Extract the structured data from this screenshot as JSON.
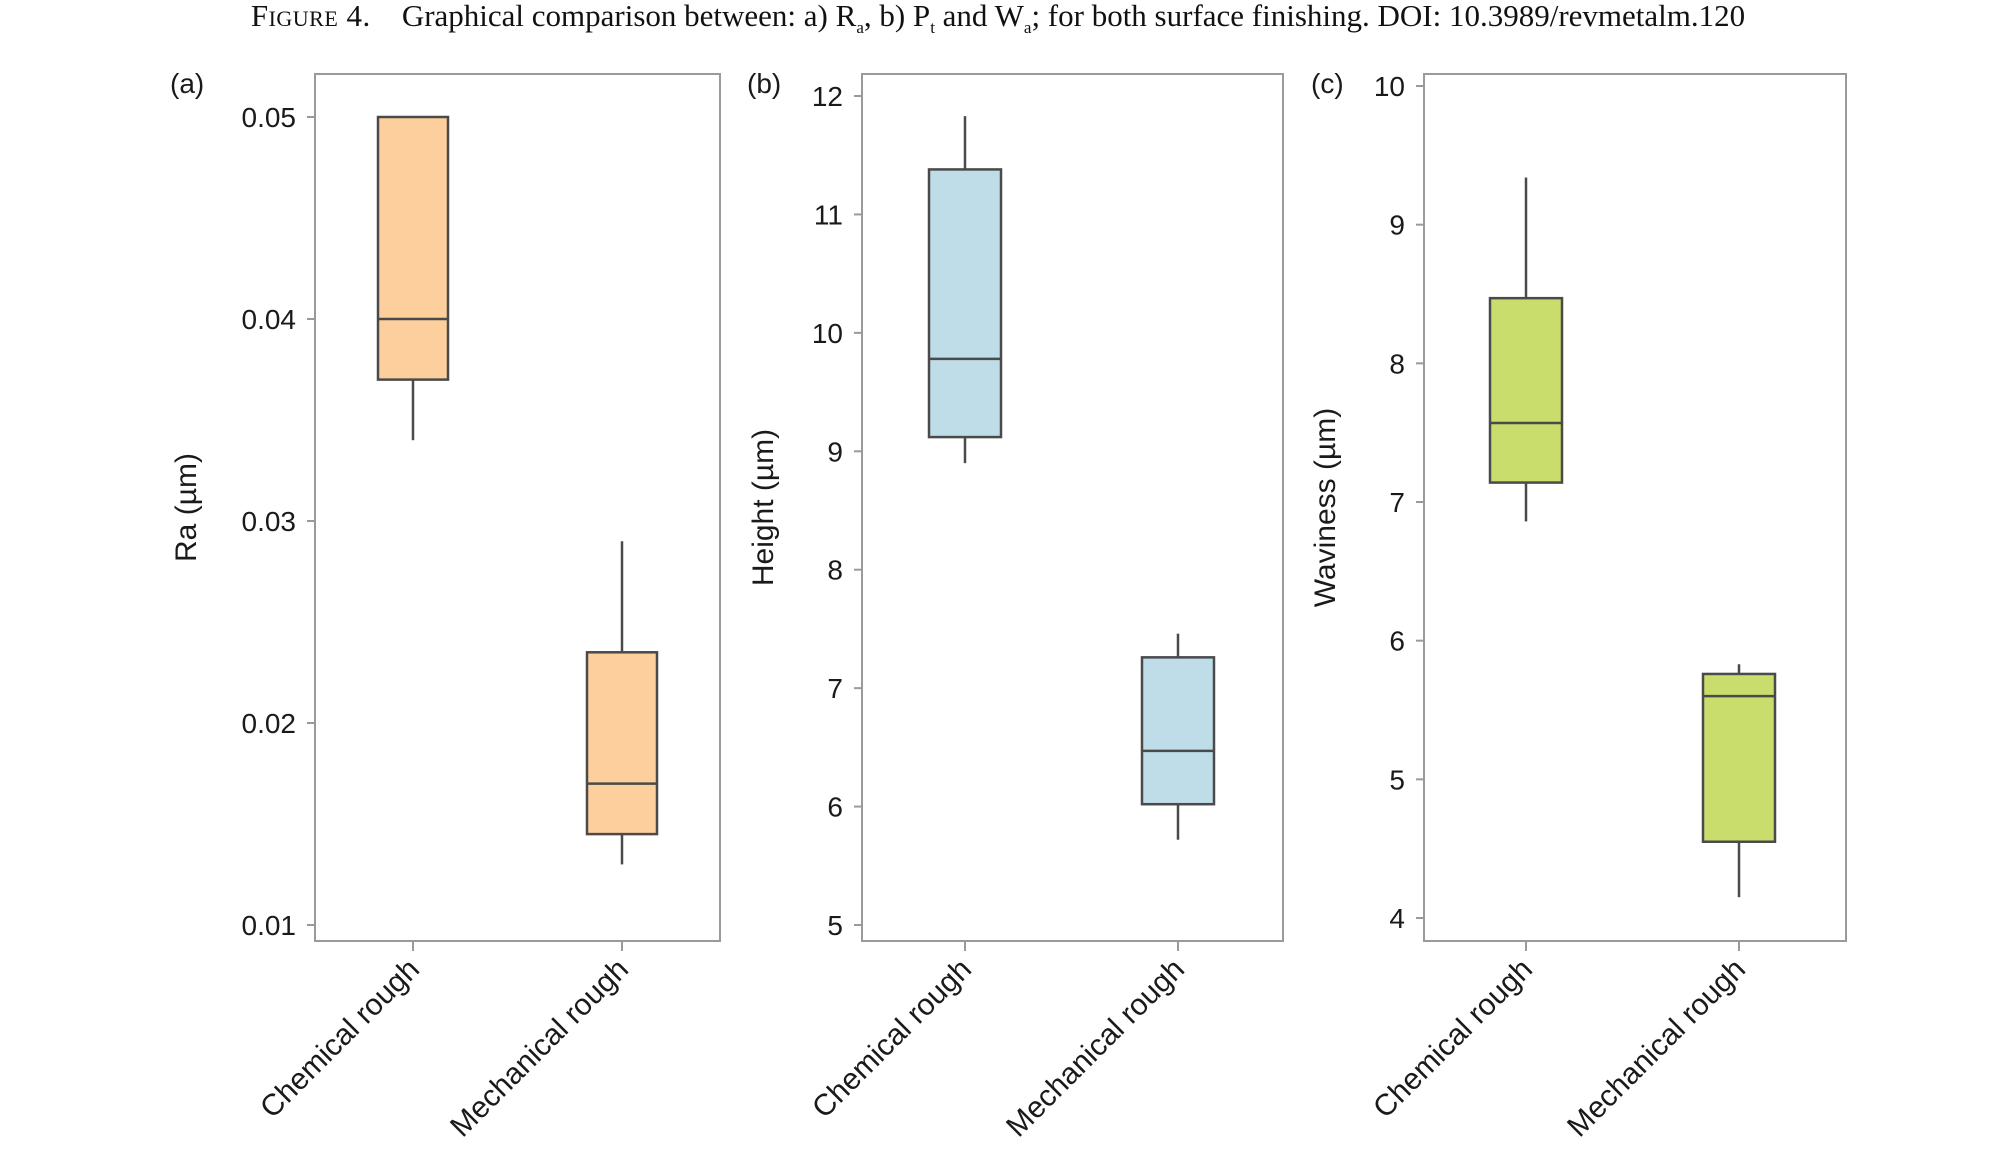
{
  "caption": {
    "figure_label": "Figure 4.",
    "text_before": "Graphical comparison between: a) R",
    "sub_1": "a",
    "text_mid_1": ", b) P",
    "sub_2": "t",
    "text_mid_2": " and W",
    "sub_3": "a",
    "text_after": "; for both surface finishing. DOI: 10.3989/revmetalm.120"
  },
  "colors": {
    "panel_a": "#fdcf9d",
    "panel_b": "#bfdde8",
    "panel_c": "#c9dd6c",
    "box_stroke": "#4a4a4a",
    "frame": "#9a9a9a"
  },
  "chart_data": [
    {
      "type": "box",
      "panel_label": "(a)",
      "ylabel": "Ra (µm)",
      "ylim": [
        0.01,
        0.05
      ],
      "yticks": [
        0.01,
        0.02,
        0.03,
        0.04,
        0.05
      ],
      "ytick_labels": [
        "0.01",
        "0.02",
        "0.03",
        "0.04",
        "0.05"
      ],
      "categories": [
        "Chemical rough",
        "Mechanical rough"
      ],
      "boxes": [
        {
          "category": "Chemical rough",
          "whisker_low": 0.034,
          "q1": 0.037,
          "median": 0.04,
          "q3": 0.05,
          "whisker_high": 0.05
        },
        {
          "category": "Mechanical rough",
          "whisker_low": 0.013,
          "q1": 0.0145,
          "median": 0.017,
          "q3": 0.0235,
          "whisker_high": 0.029
        }
      ]
    },
    {
      "type": "box",
      "panel_label": "(b)",
      "ylabel": "Height (µm)",
      "ylim": [
        5,
        12
      ],
      "yticks": [
        5,
        6,
        7,
        8,
        9,
        10,
        11,
        12
      ],
      "ytick_labels": [
        "5",
        "6",
        "7",
        "8",
        "9",
        "10",
        "11",
        "12"
      ],
      "categories": [
        "Chemical rough",
        "Mechanical rough"
      ],
      "boxes": [
        {
          "category": "Chemical rough",
          "whisker_low": 8.9,
          "q1": 9.12,
          "median": 9.78,
          "q3": 11.38,
          "whisker_high": 11.83
        },
        {
          "category": "Mechanical rough",
          "whisker_low": 5.72,
          "q1": 6.02,
          "median": 6.47,
          "q3": 7.26,
          "whisker_high": 7.46
        }
      ]
    },
    {
      "type": "box",
      "panel_label": "(c)",
      "ylabel": "Waviness (µm)",
      "ylim": [
        4,
        10
      ],
      "yticks": [
        4,
        5,
        6,
        7,
        8,
        9,
        10
      ],
      "ytick_labels": [
        "4",
        "5",
        "6",
        "7",
        "8",
        "9",
        "10"
      ],
      "categories": [
        "Chemical rough",
        "Mechanical rough"
      ],
      "boxes": [
        {
          "category": "Chemical rough",
          "whisker_low": 6.86,
          "q1": 7.14,
          "median": 7.57,
          "q3": 8.47,
          "whisker_high": 9.34
        },
        {
          "category": "Mechanical rough",
          "whisker_low": 4.15,
          "q1": 4.55,
          "median": 5.6,
          "q3": 5.76,
          "whisker_high": 5.83
        }
      ]
    }
  ]
}
